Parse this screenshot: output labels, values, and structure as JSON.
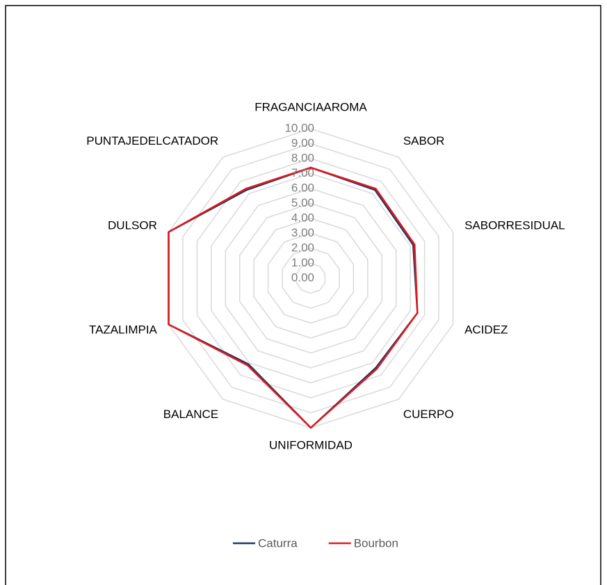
{
  "chart_data": {
    "type": "radar",
    "categories": [
      "FRAGANCIAAROMA",
      "SABOR",
      "SABORRESIDUAL",
      "ACIDEZ",
      "CUERPO",
      "UNIFORMIDAD",
      "BALANCE",
      "TAZALIMPIA",
      "DULSOR",
      "PUNTAJEDELCATADOR"
    ],
    "series": [
      {
        "name": "Caturra",
        "color": "#1f3864",
        "values": [
          7.4,
          7.3,
          7.2,
          7.5,
          7.4,
          10,
          7.1,
          10,
          10,
          7.3
        ]
      },
      {
        "name": "Bourbon",
        "color": "#e3191c",
        "values": [
          7.4,
          7.4,
          7.3,
          7.5,
          7.5,
          10,
          7.2,
          10,
          10,
          7.4
        ]
      }
    ],
    "ylim": [
      0,
      10
    ],
    "yticks": [
      {
        "value": 0,
        "label": "0.00"
      },
      {
        "value": 1,
        "label": "1.00"
      },
      {
        "value": 2,
        "label": "2.00"
      },
      {
        "value": 3,
        "label": "3.00"
      },
      {
        "value": 4,
        "label": "4.00"
      },
      {
        "value": 5,
        "label": "5.00"
      },
      {
        "value": 6,
        "label": "6.00"
      },
      {
        "value": 7,
        "label": "7.00"
      },
      {
        "value": 8,
        "label": "8.00"
      },
      {
        "value": 9,
        "label": "9.00"
      },
      {
        "value": 10,
        "label": "10.00"
      }
    ],
    "grid": true,
    "legend": "bottom"
  }
}
